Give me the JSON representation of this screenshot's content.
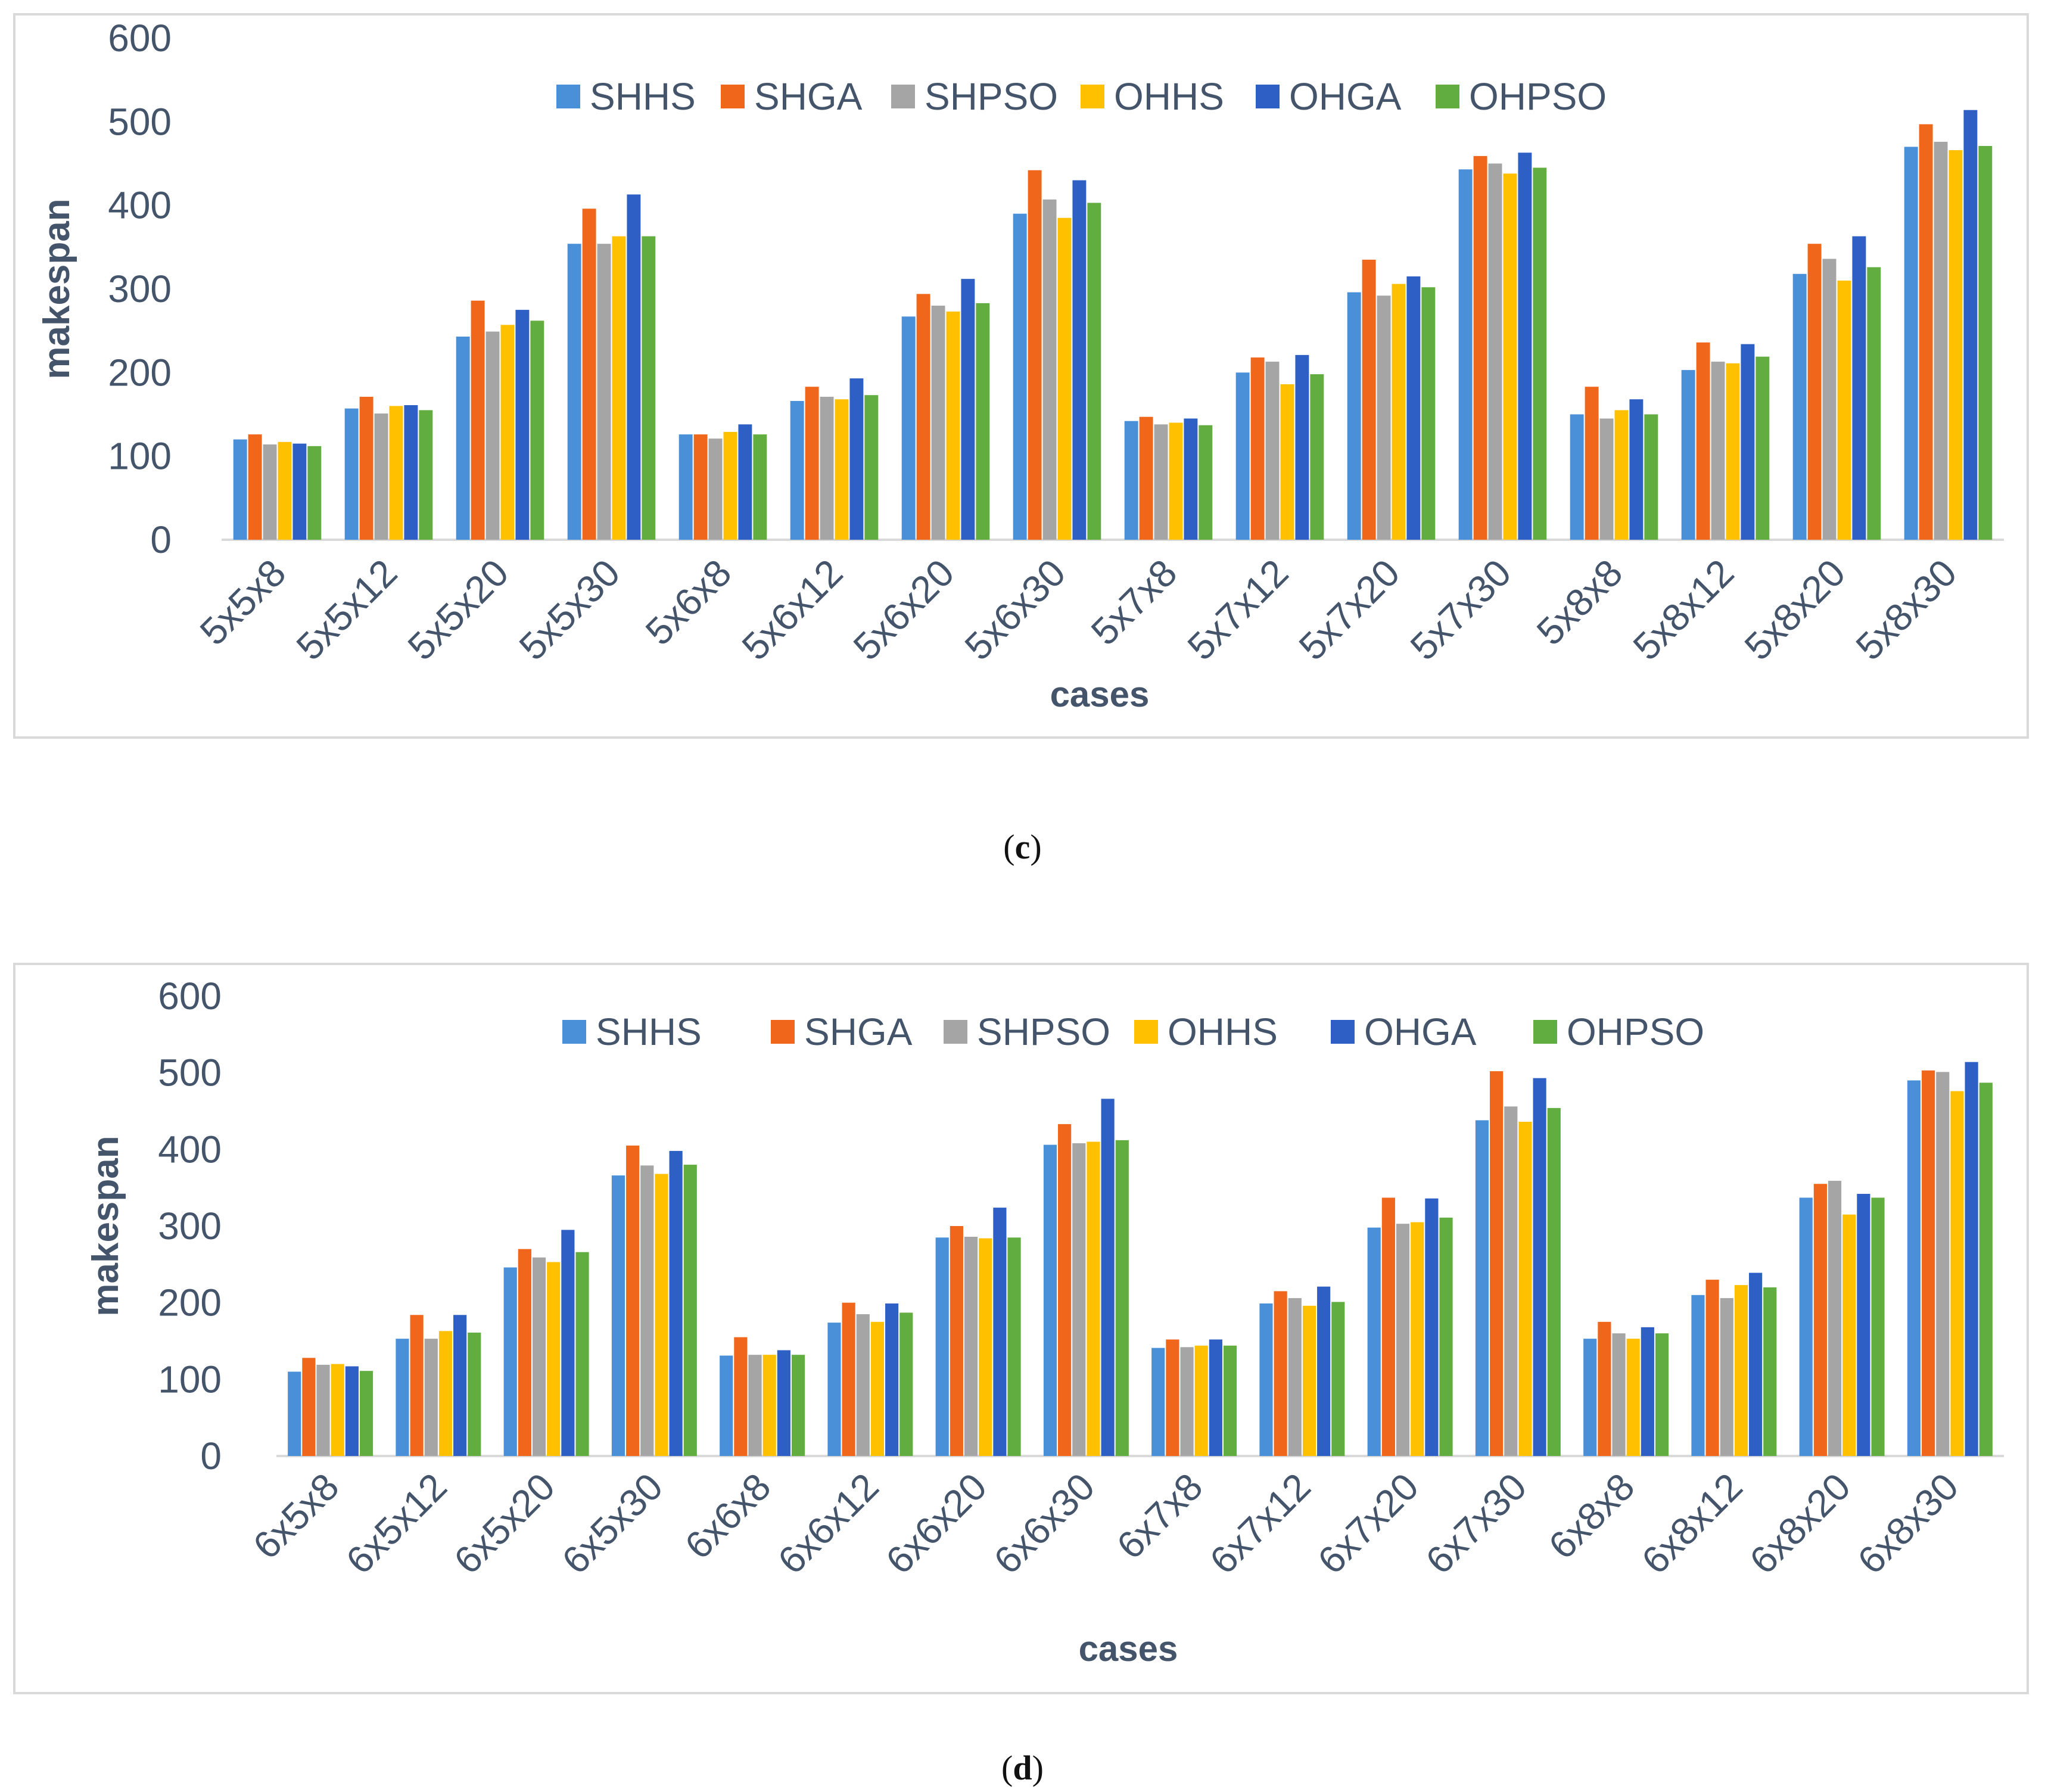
{
  "series_colors": {
    "SHHS": "#4a90d9",
    "SHGA": "#f0661a",
    "SHPSO": "#a5a5a5",
    "OHHS": "#ffc000",
    "OHGA": "#2e5fc4",
    "OHPSO": "#62ad3f"
  },
  "captions": {
    "c": {
      "open": "(",
      "letter": "c",
      "close": ")"
    },
    "d": {
      "open": "(",
      "letter": "d",
      "close": ")"
    }
  },
  "chart_data": [
    {
      "id": "c",
      "type": "bar",
      "title": "",
      "xlabel": "cases",
      "ylabel": "makespan",
      "ylim": [
        0,
        600
      ],
      "yticks": [
        0,
        100,
        200,
        300,
        400,
        500,
        600
      ],
      "grid": false,
      "legend": "top-center",
      "categories": [
        "5x5x8",
        "5x5x12",
        "5x5x20",
        "5x5x30",
        "5x6x8",
        "5x6x12",
        "5x6x20",
        "5x6x30",
        "5x7x8",
        "5x7x12",
        "5x7x20",
        "5x7x30",
        "5x8x8",
        "5x8x12",
        "5x8x20",
        "5x8x30"
      ],
      "series": [
        {
          "name": "SHHS",
          "values": [
            120,
            157,
            243,
            354,
            126,
            166,
            267,
            390,
            142,
            200,
            296,
            443,
            150,
            203,
            318,
            470
          ]
        },
        {
          "name": "SHGA",
          "values": [
            126,
            171,
            286,
            396,
            126,
            183,
            294,
            442,
            147,
            218,
            335,
            459,
            183,
            236,
            354,
            497
          ]
        },
        {
          "name": "SHPSO",
          "values": [
            114,
            151,
            249,
            354,
            121,
            171,
            280,
            407,
            138,
            213,
            292,
            450,
            145,
            213,
            336,
            476
          ]
        },
        {
          "name": "OHHS",
          "values": [
            117,
            160,
            257,
            363,
            129,
            168,
            273,
            385,
            140,
            186,
            306,
            438,
            155,
            211,
            310,
            466
          ]
        },
        {
          "name": "OHGA",
          "values": [
            115,
            161,
            275,
            413,
            138,
            193,
            312,
            430,
            145,
            221,
            315,
            463,
            168,
            234,
            363,
            514
          ]
        },
        {
          "name": "OHPSO",
          "values": [
            112,
            155,
            262,
            363,
            126,
            173,
            283,
            403,
            137,
            198,
            302,
            445,
            150,
            219,
            326,
            471
          ]
        }
      ]
    },
    {
      "id": "d",
      "type": "bar",
      "title": "",
      "xlabel": "cases",
      "ylabel": "makespan",
      "ylim": [
        0,
        600
      ],
      "yticks": [
        0,
        100,
        200,
        300,
        400,
        500,
        600
      ],
      "grid": false,
      "legend": "top-center",
      "categories": [
        "6x5x8",
        "6x5x12",
        "6x5x20",
        "6x5x30",
        "6x6x8",
        "6x6x12",
        "6x6x20",
        "6x6x30",
        "6x7x8",
        "6x7x12",
        "6x7x20",
        "6x7x30",
        "6x8x8",
        "6x8x12",
        "6x8x20",
        "6x8x30"
      ],
      "series": [
        {
          "name": "SHHS",
          "values": [
            110,
            153,
            246,
            366,
            131,
            174,
            285,
            406,
            141,
            199,
            298,
            438,
            153,
            210,
            337,
            490
          ]
        },
        {
          "name": "SHGA",
          "values": [
            128,
            184,
            270,
            405,
            155,
            200,
            300,
            433,
            152,
            215,
            337,
            502,
            175,
            230,
            355,
            503
          ]
        },
        {
          "name": "SHPSO",
          "values": [
            119,
            153,
            259,
            379,
            132,
            185,
            286,
            408,
            142,
            206,
            303,
            456,
            160,
            206,
            359,
            501
          ]
        },
        {
          "name": "OHHS",
          "values": [
            120,
            163,
            253,
            368,
            132,
            175,
            284,
            410,
            144,
            196,
            305,
            436,
            153,
            223,
            315,
            476
          ]
        },
        {
          "name": "OHGA",
          "values": [
            117,
            184,
            295,
            398,
            138,
            199,
            324,
            466,
            152,
            221,
            336,
            493,
            168,
            239,
            342,
            514
          ]
        },
        {
          "name": "OHPSO",
          "values": [
            111,
            161,
            266,
            380,
            132,
            187,
            285,
            412,
            144,
            201,
            311,
            454,
            160,
            220,
            337,
            487
          ]
        }
      ]
    }
  ]
}
